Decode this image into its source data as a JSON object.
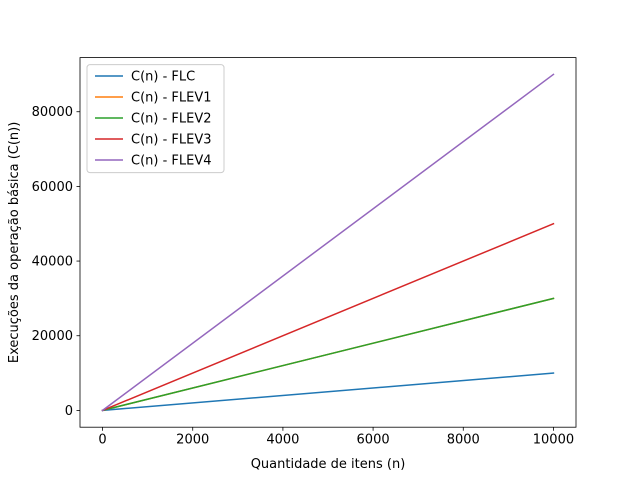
{
  "chart_data": {
    "type": "line",
    "title": "",
    "xlabel": "Quantidade de itens (n)",
    "ylabel": "Execuções da operação básica (C(n))",
    "xlim": [
      -500,
      10500
    ],
    "ylim": [
      -4500,
      94500
    ],
    "xticks": [
      0,
      2000,
      4000,
      6000,
      8000,
      10000
    ],
    "yticks": [
      0,
      20000,
      40000,
      60000,
      80000
    ],
    "x": [
      0,
      10000
    ],
    "grid": false,
    "legend_position": "top-left",
    "series": [
      {
        "name": "C(n) - FLC",
        "color": "#1f77b4",
        "values": [
          0,
          10000
        ]
      },
      {
        "name": "C(n) - FLEV1",
        "color": "#ff7f0e",
        "values": [
          0,
          30000
        ]
      },
      {
        "name": "C(n) - FLEV2",
        "color": "#2ca02c",
        "values": [
          0,
          30000
        ]
      },
      {
        "name": "C(n) - FLEV3",
        "color": "#d62728",
        "values": [
          0,
          50000
        ]
      },
      {
        "name": "C(n) - FLEV4",
        "color": "#9467bd",
        "values": [
          0,
          90000
        ]
      }
    ]
  }
}
